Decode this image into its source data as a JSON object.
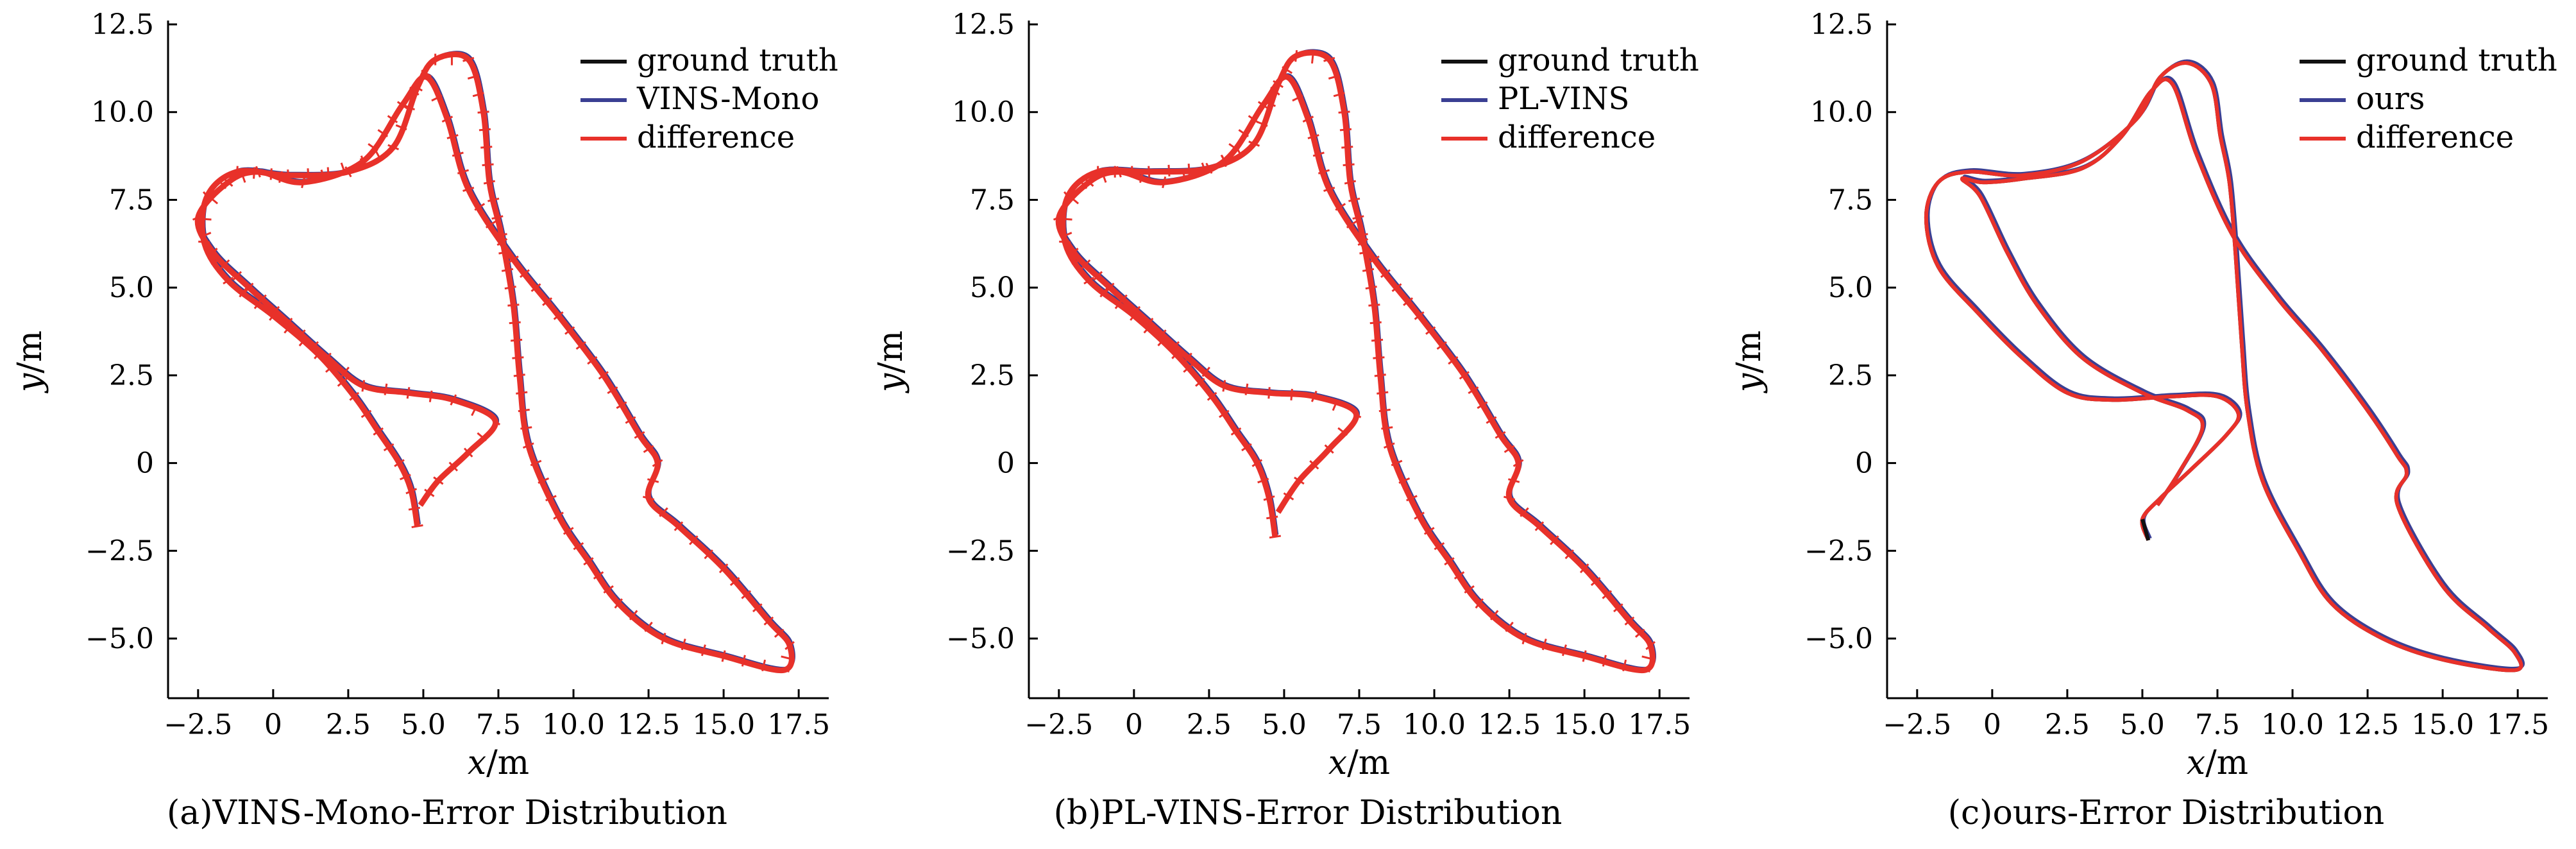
{
  "chart_data": [
    {
      "type": "line",
      "caption": "(a)VINS-Mono-Error Distribution",
      "xlabel": "x/m",
      "ylabel": "y/m",
      "xlim": [
        -3.5,
        18.5
      ],
      "ylim": [
        -6.7,
        12.5
      ],
      "xticks": [
        -2.5,
        0,
        2.5,
        5.0,
        7.5,
        10.0,
        12.5,
        15.0,
        17.5
      ],
      "xtick_labels": [
        "−2.5",
        "0",
        "2.5",
        "5.0",
        "7.5",
        "10.0",
        "12.5",
        "15.0",
        "17.5"
      ],
      "yticks": [
        -5.0,
        -2.5,
        0,
        2.5,
        5.0,
        7.5,
        10.0,
        12.5
      ],
      "ytick_labels": [
        "−5.0",
        "−2.5",
        "0",
        "2.5",
        "5.0",
        "7.5",
        "10.0",
        "12.5"
      ],
      "legend_position": "top-right",
      "series": [
        {
          "name": "ground truth",
          "color": "#111111"
        },
        {
          "name": "VINS-Mono",
          "color": "#3a3f93"
        },
        {
          "name": "difference",
          "color": "#e8312a"
        }
      ],
      "trajectory": [
        [
          4.8,
          -1.8
        ],
        [
          4.6,
          -0.8
        ],
        [
          4.2,
          0.0
        ],
        [
          3.5,
          0.9
        ],
        [
          2.7,
          1.9
        ],
        [
          1.5,
          3.1
        ],
        [
          0.0,
          4.2
        ],
        [
          -1.5,
          5.2
        ],
        [
          -2.3,
          6.3
        ],
        [
          -2.2,
          7.6
        ],
        [
          -1.2,
          8.3
        ],
        [
          0.5,
          8.2
        ],
        [
          2.5,
          8.3
        ],
        [
          4.0,
          9.0
        ],
        [
          4.8,
          10.7
        ],
        [
          5.4,
          11.5
        ],
        [
          6.5,
          11.5
        ],
        [
          7.0,
          10.0
        ],
        [
          7.2,
          8.0
        ],
        [
          7.6,
          6.5
        ],
        [
          8.0,
          4.5
        ],
        [
          8.2,
          2.5
        ],
        [
          8.5,
          0.5
        ],
        [
          9.5,
          -1.5
        ],
        [
          10.5,
          -2.8
        ],
        [
          11.5,
          -4.0
        ],
        [
          13.0,
          -5.0
        ],
        [
          15.0,
          -5.5
        ],
        [
          17.0,
          -5.9
        ],
        [
          17.2,
          -5.2
        ],
        [
          16.5,
          -4.5
        ],
        [
          15.0,
          -3.0
        ],
        [
          13.5,
          -1.8
        ],
        [
          12.5,
          -1.0
        ],
        [
          12.8,
          0.0
        ],
        [
          12.2,
          0.8
        ],
        [
          11.0,
          2.5
        ],
        [
          9.5,
          4.2
        ],
        [
          8.0,
          5.8
        ],
        [
          6.5,
          7.8
        ],
        [
          5.8,
          9.8
        ],
        [
          5.1,
          11.0
        ],
        [
          4.3,
          10.2
        ],
        [
          3.0,
          8.6
        ],
        [
          1.0,
          8.0
        ],
        [
          -0.5,
          8.3
        ],
        [
          -1.5,
          8.0
        ],
        [
          -2.5,
          7.0
        ],
        [
          -2.0,
          6.0
        ],
        [
          -0.8,
          5.0
        ],
        [
          0.5,
          4.0
        ],
        [
          1.8,
          3.0
        ],
        [
          3.0,
          2.2
        ],
        [
          4.5,
          2.0
        ],
        [
          6.0,
          1.8
        ],
        [
          7.4,
          1.2
        ],
        [
          6.5,
          0.3
        ],
        [
          5.5,
          -0.5
        ],
        [
          4.9,
          -1.2
        ]
      ]
    },
    {
      "type": "line",
      "caption": "(b)PL-VINS-Error Distribution",
      "xlabel": "x/m",
      "ylabel": "y/m",
      "xlim": [
        -3.5,
        18.5
      ],
      "ylim": [
        -6.7,
        12.5
      ],
      "xticks": [
        -2.5,
        0,
        2.5,
        5.0,
        7.5,
        10.0,
        12.5,
        15.0,
        17.5
      ],
      "xtick_labels": [
        "−2.5",
        "0",
        "2.5",
        "5.0",
        "7.5",
        "10.0",
        "12.5",
        "15.0",
        "17.5"
      ],
      "yticks": [
        -5.0,
        -2.5,
        0,
        2.5,
        5.0,
        7.5,
        10.0,
        12.5
      ],
      "ytick_labels": [
        "−5.0",
        "−2.5",
        "0",
        "2.5",
        "5.0",
        "7.5",
        "10.0",
        "12.5"
      ],
      "legend_position": "top-right",
      "series": [
        {
          "name": "ground truth",
          "color": "#111111"
        },
        {
          "name": "PL-VINS",
          "color": "#3a3f93"
        },
        {
          "name": "difference",
          "color": "#e8312a"
        }
      ],
      "trajectory": [
        [
          4.7,
          -2.1
        ],
        [
          4.5,
          -1.0
        ],
        [
          4.1,
          0.0
        ],
        [
          3.4,
          0.9
        ],
        [
          2.6,
          1.9
        ],
        [
          1.4,
          3.1
        ],
        [
          0.0,
          4.2
        ],
        [
          -1.5,
          5.2
        ],
        [
          -2.3,
          6.3
        ],
        [
          -2.2,
          7.6
        ],
        [
          -1.2,
          8.3
        ],
        [
          0.5,
          8.3
        ],
        [
          2.5,
          8.4
        ],
        [
          4.0,
          9.1
        ],
        [
          4.8,
          10.8
        ],
        [
          5.4,
          11.6
        ],
        [
          6.5,
          11.5
        ],
        [
          7.0,
          10.0
        ],
        [
          7.2,
          8.0
        ],
        [
          7.6,
          6.5
        ],
        [
          8.0,
          4.5
        ],
        [
          8.2,
          2.5
        ],
        [
          8.5,
          0.5
        ],
        [
          9.5,
          -1.5
        ],
        [
          10.5,
          -2.8
        ],
        [
          11.5,
          -4.0
        ],
        [
          13.0,
          -5.0
        ],
        [
          15.0,
          -5.5
        ],
        [
          17.0,
          -5.9
        ],
        [
          17.2,
          -5.2
        ],
        [
          16.5,
          -4.5
        ],
        [
          15.0,
          -3.0
        ],
        [
          13.5,
          -1.8
        ],
        [
          12.5,
          -1.0
        ],
        [
          12.8,
          0.0
        ],
        [
          12.2,
          0.8
        ],
        [
          11.0,
          2.5
        ],
        [
          9.5,
          4.2
        ],
        [
          8.0,
          5.8
        ],
        [
          6.5,
          7.8
        ],
        [
          5.8,
          9.8
        ],
        [
          5.1,
          11.0
        ],
        [
          4.3,
          10.2
        ],
        [
          3.0,
          8.6
        ],
        [
          1.0,
          8.0
        ],
        [
          -0.5,
          8.3
        ],
        [
          -1.5,
          8.0
        ],
        [
          -2.5,
          7.0
        ],
        [
          -2.0,
          6.0
        ],
        [
          -0.8,
          5.0
        ],
        [
          0.5,
          4.0
        ],
        [
          1.8,
          3.0
        ],
        [
          3.0,
          2.2
        ],
        [
          4.5,
          2.0
        ],
        [
          6.0,
          1.9
        ],
        [
          7.4,
          1.4
        ],
        [
          6.5,
          0.4
        ],
        [
          5.5,
          -0.5
        ],
        [
          4.8,
          -1.4
        ]
      ]
    },
    {
      "type": "line",
      "caption": "(c)ours-Error Distribution",
      "xlabel": "x/m",
      "ylabel": "y/m",
      "xlim": [
        -3.5,
        18.5
      ],
      "ylim": [
        -6.7,
        12.5
      ],
      "xticks": [
        -2.5,
        0,
        2.5,
        5.0,
        7.5,
        10.0,
        12.5,
        15.0,
        17.5
      ],
      "xtick_labels": [
        "−2.5",
        "0",
        "2.5",
        "5.0",
        "7.5",
        "10.0",
        "12.5",
        "15.0",
        "17.5"
      ],
      "yticks": [
        -5.0,
        -2.5,
        0,
        2.5,
        5.0,
        7.5,
        10.0,
        12.5
      ],
      "ytick_labels": [
        "−5.0",
        "−2.5",
        "0",
        "2.5",
        "5.0",
        "7.5",
        "10.0",
        "12.5"
      ],
      "legend_position": "top-right",
      "series": [
        {
          "name": "ground truth",
          "color": "#111111"
        },
        {
          "name": "ours",
          "color": "#3a3f93"
        },
        {
          "name": "difference",
          "color": "#e8312a"
        }
      ],
      "trajectory": [
        [
          5.2,
          -2.2
        ],
        [
          5.0,
          -1.6
        ],
        [
          5.6,
          -1.0
        ],
        [
          6.6,
          -0.2
        ],
        [
          7.8,
          0.8
        ],
        [
          8.2,
          1.4
        ],
        [
          7.5,
          1.9
        ],
        [
          6.0,
          1.9
        ],
        [
          4.0,
          1.8
        ],
        [
          2.5,
          2.0
        ],
        [
          1.0,
          3.0
        ],
        [
          -0.5,
          4.3
        ],
        [
          -1.8,
          5.6
        ],
        [
          -2.2,
          7.0
        ],
        [
          -1.8,
          8.0
        ],
        [
          -0.8,
          8.3
        ],
        [
          1.0,
          8.2
        ],
        [
          3.0,
          8.6
        ],
        [
          4.8,
          9.8
        ],
        [
          5.6,
          11.0
        ],
        [
          6.5,
          11.4
        ],
        [
          7.3,
          10.8
        ],
        [
          7.6,
          9.3
        ],
        [
          7.9,
          8.0
        ],
        [
          8.1,
          6.0
        ],
        [
          8.3,
          3.5
        ],
        [
          8.5,
          1.5
        ],
        [
          9.0,
          -0.5
        ],
        [
          10.2,
          -2.5
        ],
        [
          11.3,
          -4.0
        ],
        [
          13.0,
          -5.0
        ],
        [
          15.0,
          -5.6
        ],
        [
          17.4,
          -5.9
        ],
        [
          17.4,
          -5.4
        ],
        [
          16.5,
          -4.7
        ],
        [
          15.0,
          -3.5
        ],
        [
          13.5,
          -1.2
        ],
        [
          13.8,
          -0.3
        ],
        [
          13.5,
          0.2
        ],
        [
          12.5,
          1.5
        ],
        [
          11.0,
          3.2
        ],
        [
          9.5,
          4.7
        ],
        [
          8.0,
          6.5
        ],
        [
          6.8,
          8.8
        ],
        [
          6.0,
          10.8
        ],
        [
          5.3,
          10.6
        ],
        [
          4.3,
          9.3
        ],
        [
          3.0,
          8.4
        ],
        [
          1.0,
          8.1
        ],
        [
          -0.3,
          8.0
        ],
        [
          -1.0,
          8.1
        ],
        [
          -0.4,
          7.6
        ],
        [
          0.5,
          6.0
        ],
        [
          1.5,
          4.5
        ],
        [
          3.0,
          3.0
        ],
        [
          5.0,
          2.0
        ],
        [
          6.5,
          1.5
        ],
        [
          7.0,
          1.0
        ],
        [
          6.2,
          -0.3
        ],
        [
          5.5,
          -1.2
        ]
      ]
    }
  ]
}
